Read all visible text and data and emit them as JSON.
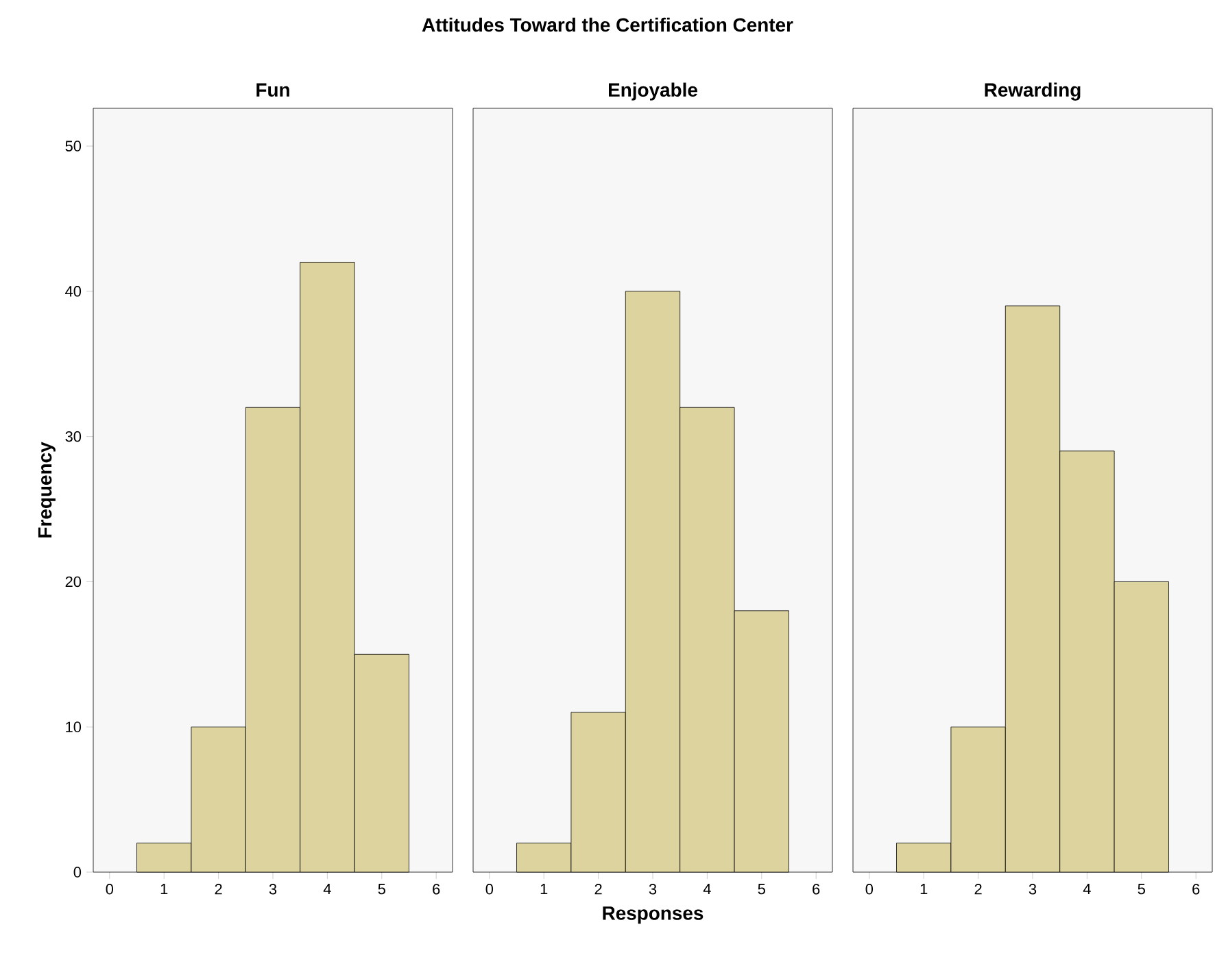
{
  "chart_data": [
    {
      "type": "histogram",
      "subtitle": "Fun",
      "ylabel": "Frequency",
      "bins": [
        0.5,
        1.5,
        2.5,
        3.5,
        4.5,
        5.5
      ],
      "values": [
        2,
        10,
        32,
        42,
        15
      ],
      "color": "#dcd39e",
      "xlim": [
        -0.3,
        6.3
      ],
      "xticks": [
        0,
        1,
        2,
        3,
        4,
        5,
        6
      ],
      "ylim": [
        0,
        52.6
      ],
      "yticks": [
        0,
        10,
        20,
        30,
        40,
        50
      ]
    },
    {
      "type": "histogram",
      "title": "Attitudes Toward the Certification Center",
      "subtitle": "Enjoyable",
      "xlabel": "Responses",
      "bins": [
        0.5,
        1.5,
        2.5,
        3.5,
        4.5,
        5.5
      ],
      "values": [
        2,
        11,
        40,
        32,
        18
      ],
      "color": "#dcd39e",
      "xlim": [
        -0.3,
        6.3
      ],
      "xticks": [
        0,
        1,
        2,
        3,
        4,
        5,
        6
      ],
      "ylim": [
        0,
        52.6
      ],
      "tick_labels": "x"
    },
    {
      "type": "histogram",
      "subtitle": "Rewarding",
      "bins": [
        0.5,
        1.5,
        2.5,
        3.5,
        4.5,
        5.5
      ],
      "values": [
        2,
        10,
        39,
        29,
        20
      ],
      "color": "#dcd39e",
      "xlim": [
        -0.3,
        6.3
      ],
      "xticks": [
        0,
        1,
        2,
        3,
        4,
        5,
        6
      ],
      "ylim": [
        0,
        52.6
      ],
      "tick_labels": "x"
    }
  ]
}
